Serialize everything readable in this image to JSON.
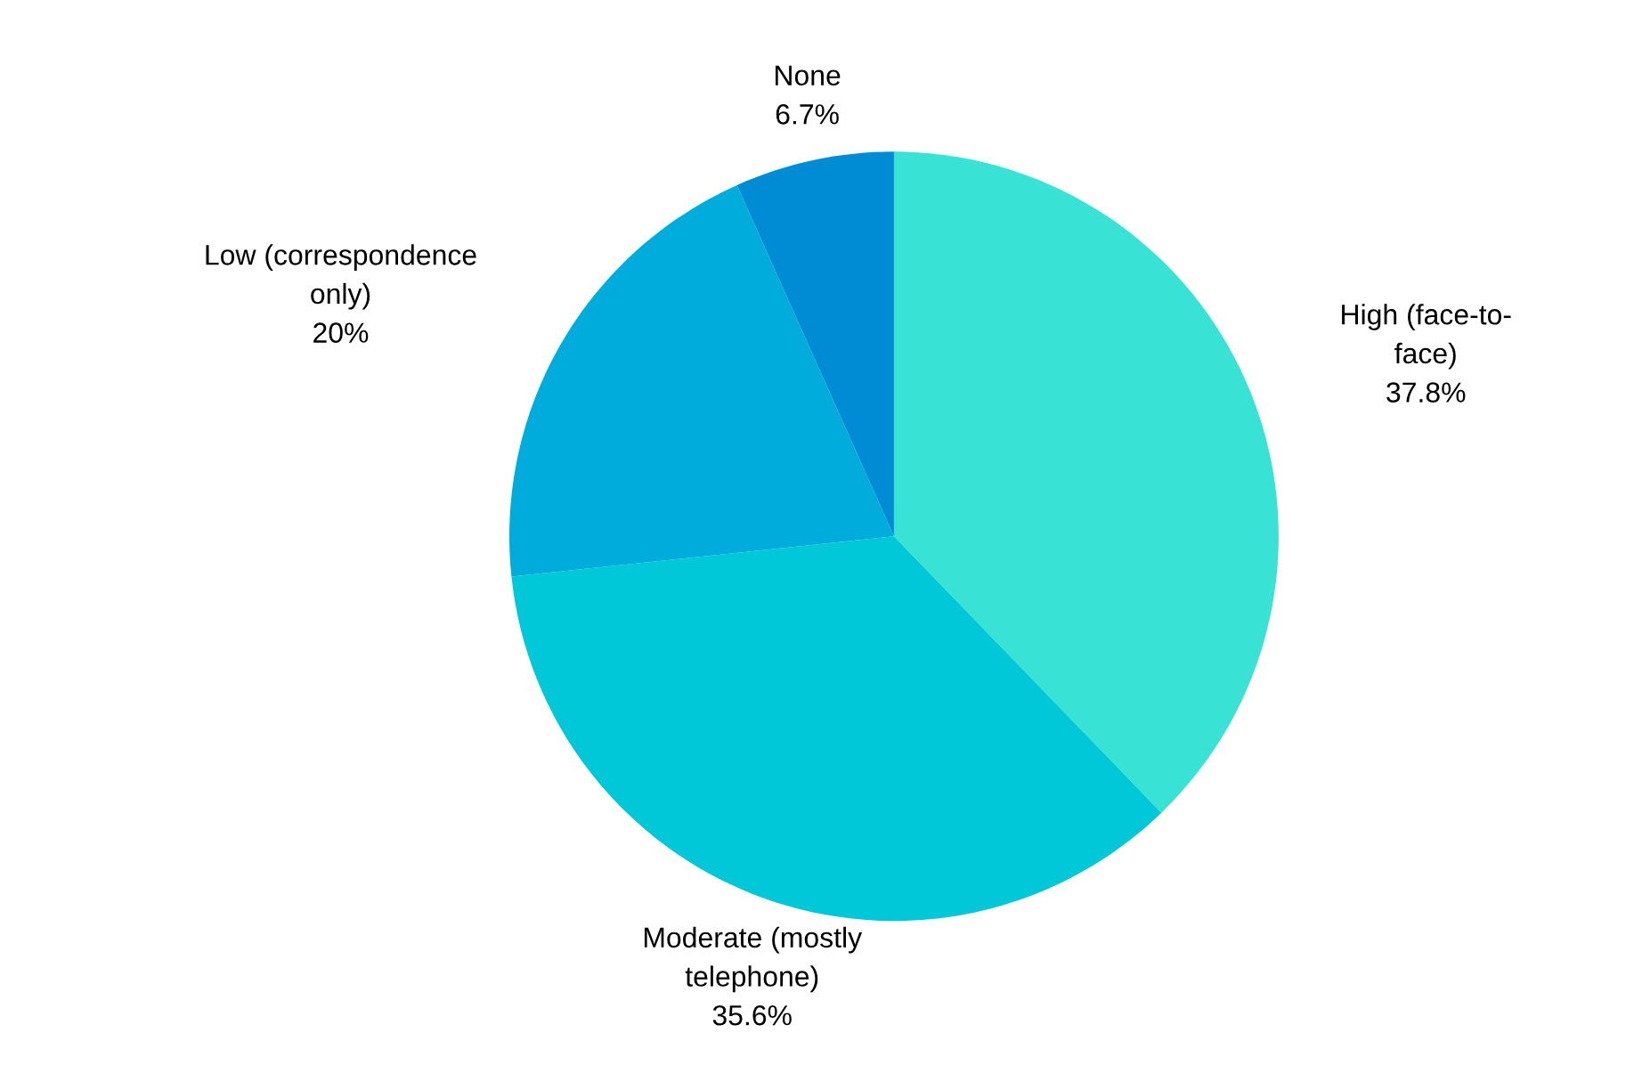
{
  "chart_data": {
    "type": "pie",
    "categories": [
      "High (face-to-\nface)",
      "Moderate (mostly\ntelephone)",
      "Low (correspondence\nonly)",
      "None"
    ],
    "values": [
      37.8,
      35.6,
      20,
      6.7
    ],
    "value_labels": [
      "37.8%",
      "35.6%",
      "20%",
      "6.7%"
    ],
    "colors": [
      "#38e2d4",
      "#00c8d8",
      "#00acdc",
      "#008cd4"
    ]
  }
}
